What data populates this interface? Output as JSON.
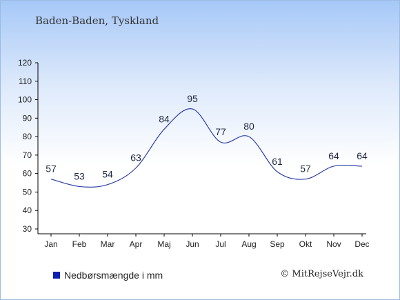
{
  "title": "Baden-Baden, Tyskland",
  "legend": {
    "label": "Nedbørsmængde i mm",
    "color": "#0a1fb4"
  },
  "credit": "© MitRejseVejr.dk",
  "colors": {
    "line": "#2d3fa8",
    "axis": "#000000"
  },
  "chart_data": {
    "type": "line",
    "categories": [
      "Jan",
      "Feb",
      "Mar",
      "Apr",
      "Maj",
      "Jun",
      "Jul",
      "Aug",
      "Sep",
      "Okt",
      "Nov",
      "Dec"
    ],
    "series": [
      {
        "name": "Nedbørsmængde i mm",
        "values": [
          57,
          53,
          54,
          63,
          84,
          95,
          77,
          80,
          61,
          57,
          64,
          64
        ]
      }
    ],
    "ylim": [
      30,
      120
    ],
    "yticks": [
      30,
      40,
      50,
      60,
      70,
      80,
      90,
      100,
      110,
      120
    ],
    "grid": false,
    "legend_position": "bottom-left"
  }
}
